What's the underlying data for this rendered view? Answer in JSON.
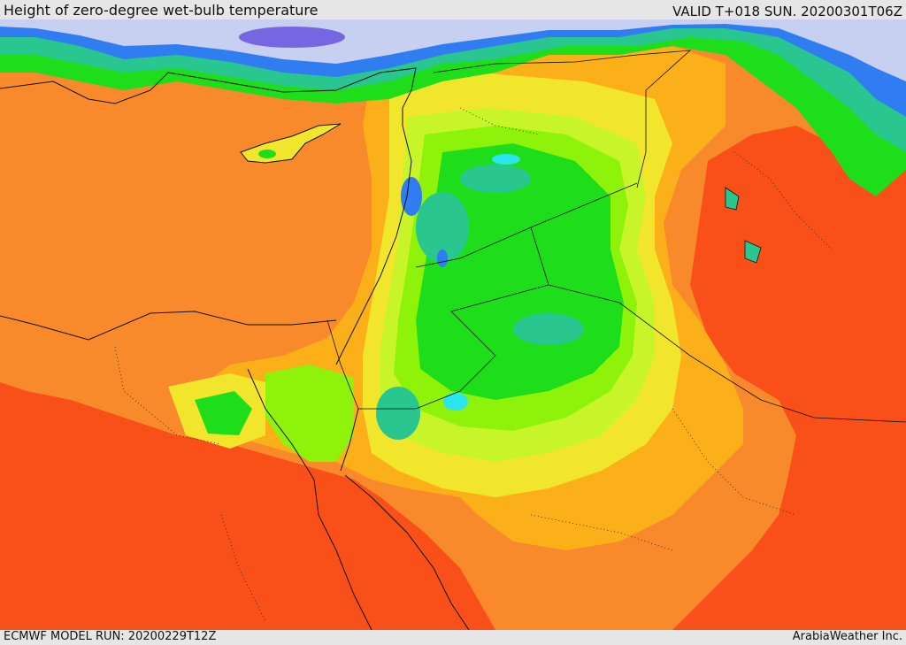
{
  "header": {
    "title": "Height of zero-degree wet-bulb temperature",
    "valid": "VALID T+018 SUN. 20200301T06Z"
  },
  "footer": {
    "model_run": "ECMWF MODEL RUN: 20200229T12Z",
    "credit": "ArabiaWeather Inc."
  },
  "palette": {
    "deep_orange": "#f94f18",
    "orange": "#f98a2c",
    "light_orange": "#fbb01a",
    "yellow": "#f2e62c",
    "yellow_green": "#c8f52a",
    "lime": "#8ef20a",
    "green": "#1ede1c",
    "teal": "#2ac68f",
    "cyan": "#2ae6ee",
    "blue": "#2f7df0",
    "lavender": "#c8d0f2",
    "violet": "#7666e2"
  }
}
